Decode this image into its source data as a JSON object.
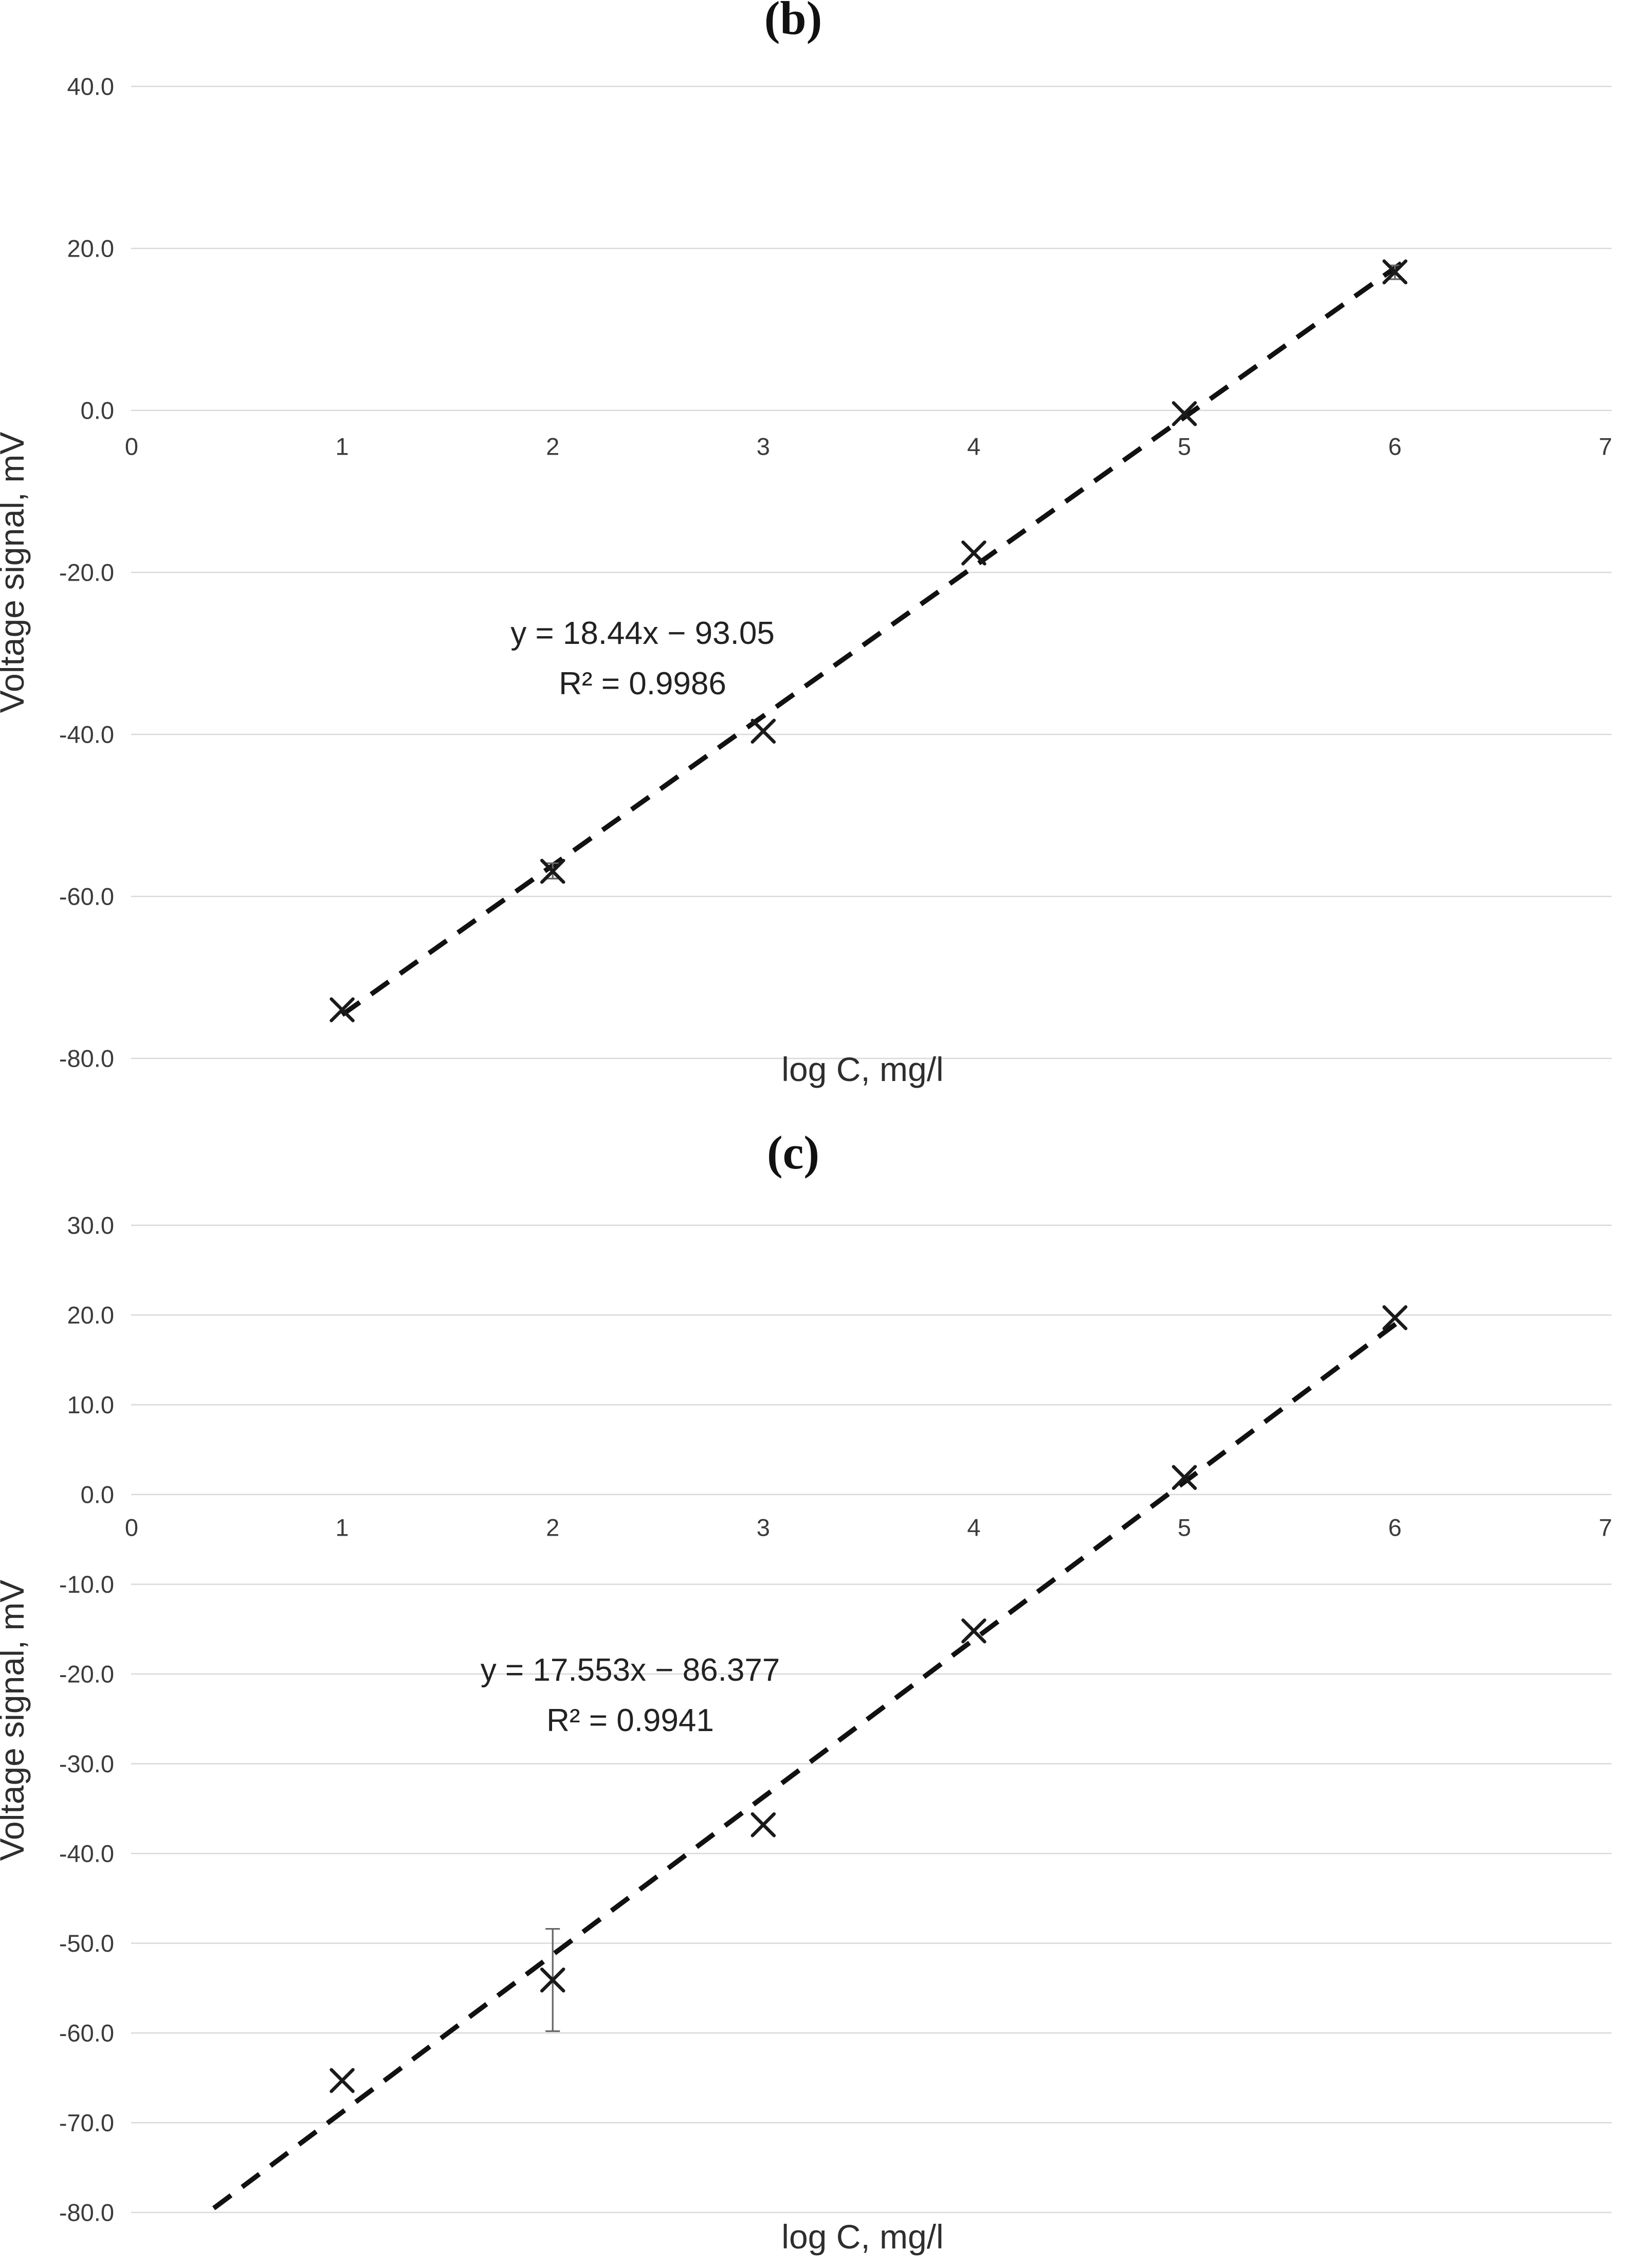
{
  "page": {
    "background_color": "#ffffff",
    "figure_type": "two stacked calibration scatter plots"
  },
  "chart_data": [
    {
      "type": "scatter",
      "panel_label": "(b)",
      "xlabel": "log C, mg/l",
      "ylabel": "Voltage signal, mV",
      "xlim": [
        0,
        7
      ],
      "ylim": [
        -80,
        40
      ],
      "grid": "horizontal",
      "legend_position": "none",
      "marker": "x",
      "x": [
        1,
        2,
        3,
        4,
        5,
        6
      ],
      "y": [
        -74.0,
        -56.9,
        -39.6,
        -17.6,
        -0.4,
        17.1
      ],
      "error_bars": [
        {
          "x": 2,
          "low": -57.8,
          "high": -55.9
        },
        {
          "x": 6,
          "low": 16.2,
          "high": 17.9
        }
      ],
      "trendline": {
        "style": "dashed",
        "slope": 18.44,
        "intercept": -93.05,
        "x_start": 1.0,
        "x_end": 6.05,
        "equation": "y = 18.44x − 93.05",
        "r_squared": "R² = 0.9986"
      },
      "x_ticks": {
        "values": [
          0,
          1,
          2,
          3,
          4,
          5,
          6,
          7
        ],
        "labels": [
          "0",
          "1",
          "2",
          "3",
          "4",
          "5",
          "6",
          "7"
        ]
      },
      "y_ticks": {
        "values": [
          40,
          20,
          0,
          -20,
          -40,
          -60,
          -80
        ],
        "labels": [
          "40.0",
          "20.0",
          "0.0",
          "-20.0",
          "-40.0",
          "-60.0",
          "-80.0"
        ]
      },
      "colors": {
        "marker": "#1a1a1a",
        "trendline": "#111111",
        "gridline": "#d9d9d9",
        "text": "#3b3b3b",
        "error_bar": "#666666"
      }
    },
    {
      "type": "scatter",
      "panel_label": "(c)",
      "xlabel": "log C, mg/l",
      "ylabel": "Voltage signal, mV",
      "xlim": [
        0,
        7
      ],
      "ylim": [
        -80,
        30
      ],
      "grid": "horizontal",
      "legend_position": "none",
      "marker": "x",
      "x": [
        1,
        2,
        3,
        4,
        5,
        6
      ],
      "y": [
        -65.3,
        -54.1,
        -36.8,
        -15.2,
        1.9,
        19.7
      ],
      "error_bars": [
        {
          "x": 2,
          "low": -59.8,
          "high": -48.4
        }
      ],
      "trendline": {
        "style": "dashed",
        "slope": 17.553,
        "intercept": -86.377,
        "x_start": 0.39,
        "x_end": 6.03,
        "equation": "y = 17.553x − 86.377",
        "r_squared": "R² = 0.9941"
      },
      "x_ticks": {
        "values": [
          0,
          1,
          2,
          3,
          4,
          5,
          6,
          7
        ],
        "labels": [
          "0",
          "1",
          "2",
          "3",
          "4",
          "5",
          "6",
          "7"
        ]
      },
      "y_ticks": {
        "values": [
          30,
          20,
          10,
          0,
          -10,
          -20,
          -30,
          -40,
          -50,
          -60,
          -70,
          -80
        ],
        "labels": [
          "30.0",
          "20.0",
          "10.0",
          "0.0",
          "-10.0",
          "-20.0",
          "-30.0",
          "-40.0",
          "-50.0",
          "-60.0",
          "-70.0",
          "-80.0"
        ]
      },
      "colors": {
        "marker": "#1a1a1a",
        "trendline": "#111111",
        "gridline": "#d9d9d9",
        "text": "#3b3b3b",
        "error_bar": "#666666"
      }
    }
  ]
}
